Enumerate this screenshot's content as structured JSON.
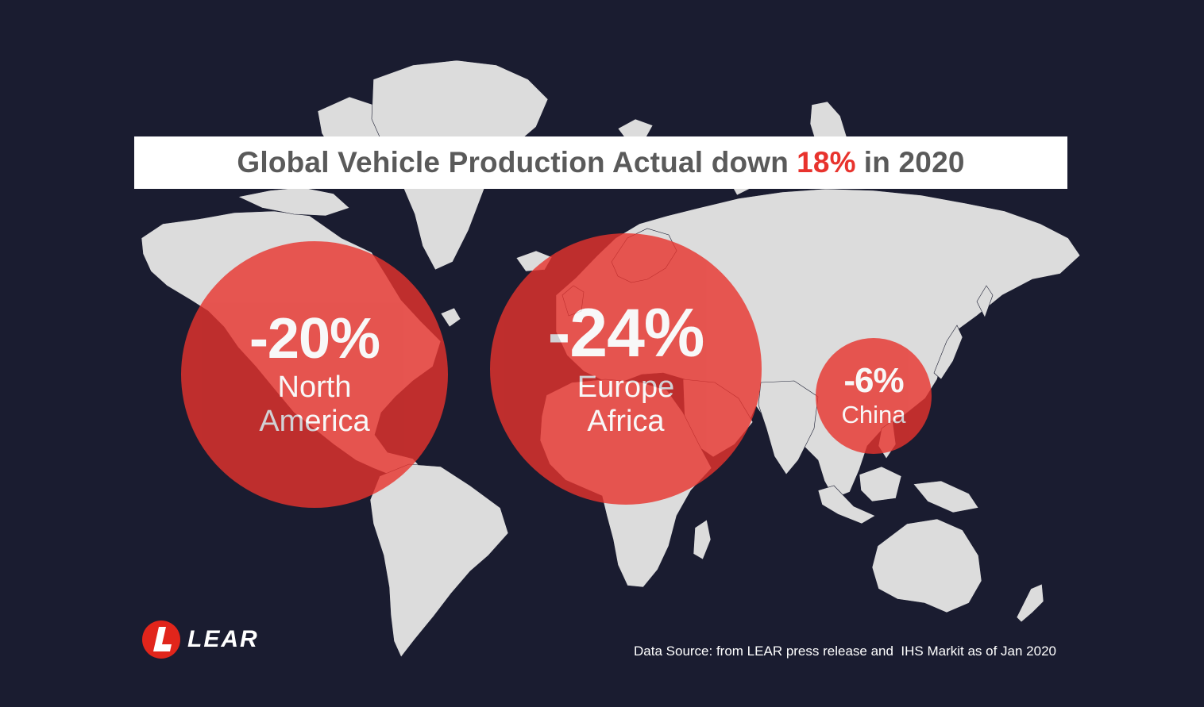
{
  "title": {
    "prefix": "Global Vehicle Production Actual down",
    "highlight": "18%",
    "suffix": "in 2020"
  },
  "regions": [
    {
      "id": "north-america",
      "value_label": "-20%",
      "value": -20,
      "name_lines": [
        "North",
        "America"
      ]
    },
    {
      "id": "europe-africa",
      "value_label": "-24%",
      "value": -24,
      "name_lines": [
        "Europe",
        "Africa"
      ]
    },
    {
      "id": "china",
      "value_label": "-6%",
      "value": -6,
      "name_lines": [
        "China"
      ]
    }
  ],
  "logo": {
    "text": "LEAR"
  },
  "source_note": "Data Source: from LEAR press release and  IHS Markit as of Jan 2020",
  "colors": {
    "background": "#1a1c30",
    "land": "#dcdcdc",
    "bubble": "#e8332d",
    "title_text": "#5a5a5a",
    "title_accent": "#e8332d",
    "logo_red": "#e1251b"
  }
}
